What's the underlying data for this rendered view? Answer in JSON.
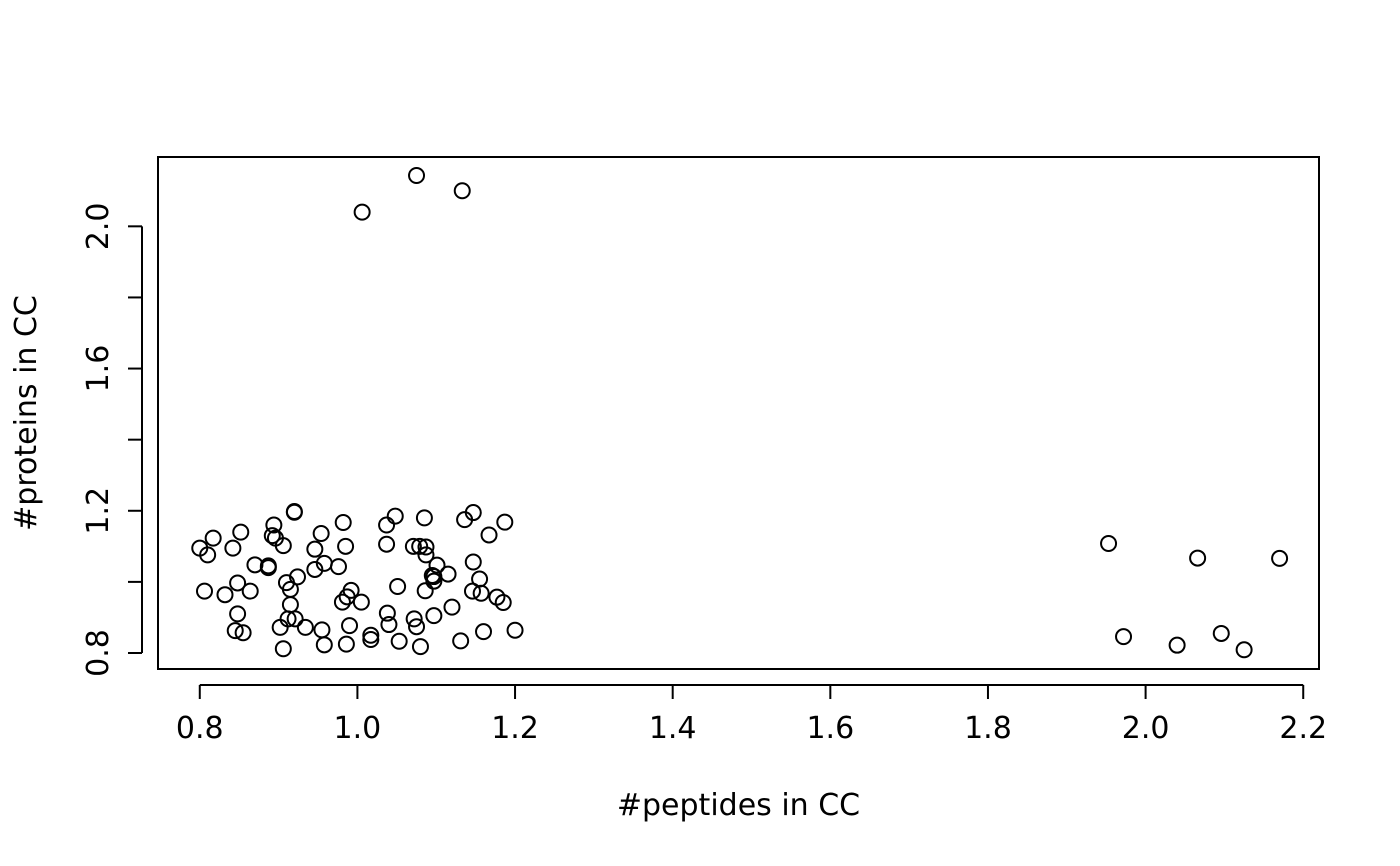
{
  "chart_data": {
    "type": "scatter",
    "title": "",
    "xlabel": "#peptides in CC",
    "ylabel": "#proteins in CC",
    "xlim": [
      0.747,
      2.22
    ],
    "ylim": [
      0.755,
      2.195
    ],
    "xticks": [
      "0.8",
      "1.0",
      "1.2",
      "1.4",
      "1.6",
      "1.8",
      "2.0",
      "2.2"
    ],
    "yticks": [
      "0.8",
      "1.2",
      "1.6",
      "2.0"
    ],
    "yticks_unlabeled": [
      1.0,
      1.4,
      1.8
    ],
    "grid": false,
    "legend": "none",
    "marker": "open-circle",
    "points": [
      [
        1.075,
        2.143
      ],
      [
        1.133,
        2.1
      ],
      [
        1.006,
        2.04
      ],
      [
        0.8,
        1.095
      ],
      [
        0.81,
        1.076
      ],
      [
        0.817,
        1.123
      ],
      [
        0.806,
        0.974
      ],
      [
        0.842,
        1.095
      ],
      [
        0.852,
        1.14
      ],
      [
        0.848,
        0.997
      ],
      [
        0.832,
        0.964
      ],
      [
        0.848,
        0.91
      ],
      [
        0.845,
        0.863
      ],
      [
        0.855,
        0.857
      ],
      [
        0.864,
        0.974
      ],
      [
        0.87,
        1.048
      ],
      [
        0.887,
        1.045
      ],
      [
        0.887,
        1.04
      ],
      [
        0.892,
        1.13
      ],
      [
        0.894,
        1.16
      ],
      [
        0.896,
        1.123
      ],
      [
        0.906,
        1.102
      ],
      [
        0.92,
        1.198
      ],
      [
        0.92,
        1.196
      ],
      [
        0.91,
        0.998
      ],
      [
        0.915,
        0.979
      ],
      [
        0.924,
        1.014
      ],
      [
        0.915,
        0.936
      ],
      [
        0.912,
        0.896
      ],
      [
        0.921,
        0.896
      ],
      [
        0.902,
        0.872
      ],
      [
        0.906,
        0.812
      ],
      [
        0.946,
        1.092
      ],
      [
        0.946,
        1.035
      ],
      [
        0.954,
        1.136
      ],
      [
        0.958,
        1.052
      ],
      [
        0.934,
        0.872
      ],
      [
        0.955,
        0.865
      ],
      [
        0.958,
        0.823
      ],
      [
        0.976,
        1.043
      ],
      [
        0.982,
        1.167
      ],
      [
        0.985,
        1.1
      ],
      [
        0.992,
        0.976
      ],
      [
        0.981,
        0.943
      ],
      [
        0.987,
        0.958
      ],
      [
        0.99,
        0.877
      ],
      [
        0.986,
        0.825
      ],
      [
        1.005,
        0.943
      ],
      [
        1.017,
        0.85
      ],
      [
        1.017,
        0.838
      ],
      [
        1.037,
        1.16
      ],
      [
        1.048,
        1.185
      ],
      [
        1.037,
        1.106
      ],
      [
        1.038,
        0.912
      ],
      [
        1.04,
        0.88
      ],
      [
        1.051,
        0.987
      ],
      [
        1.053,
        0.833
      ],
      [
        1.071,
        1.1
      ],
      [
        1.079,
        1.1
      ],
      [
        1.085,
        1.18
      ],
      [
        1.087,
        1.098
      ],
      [
        1.087,
        1.076
      ],
      [
        1.086,
        0.975
      ],
      [
        1.072,
        0.896
      ],
      [
        1.075,
        0.874
      ],
      [
        1.08,
        0.818
      ],
      [
        1.095,
        1.018
      ],
      [
        1.097,
        1.015
      ],
      [
        1.097,
        1.002
      ],
      [
        1.101,
        1.047
      ],
      [
        1.097,
        0.905
      ],
      [
        1.115,
        1.022
      ],
      [
        1.12,
        0.929
      ],
      [
        1.131,
        0.834
      ],
      [
        1.136,
        1.175
      ],
      [
        1.147,
        1.195
      ],
      [
        1.147,
        1.056
      ],
      [
        1.146,
        0.974
      ],
      [
        1.155,
        1.008
      ],
      [
        1.157,
        0.968
      ],
      [
        1.16,
        0.86
      ],
      [
        1.167,
        1.132
      ],
      [
        1.177,
        0.957
      ],
      [
        1.185,
        0.942
      ],
      [
        1.187,
        1.168
      ],
      [
        1.2,
        0.864
      ],
      [
        1.953,
        1.108
      ],
      [
        1.972,
        0.846
      ],
      [
        2.04,
        0.822
      ],
      [
        2.066,
        1.067
      ],
      [
        2.096,
        0.855
      ],
      [
        2.125,
        0.809
      ],
      [
        2.17,
        1.066
      ]
    ]
  }
}
